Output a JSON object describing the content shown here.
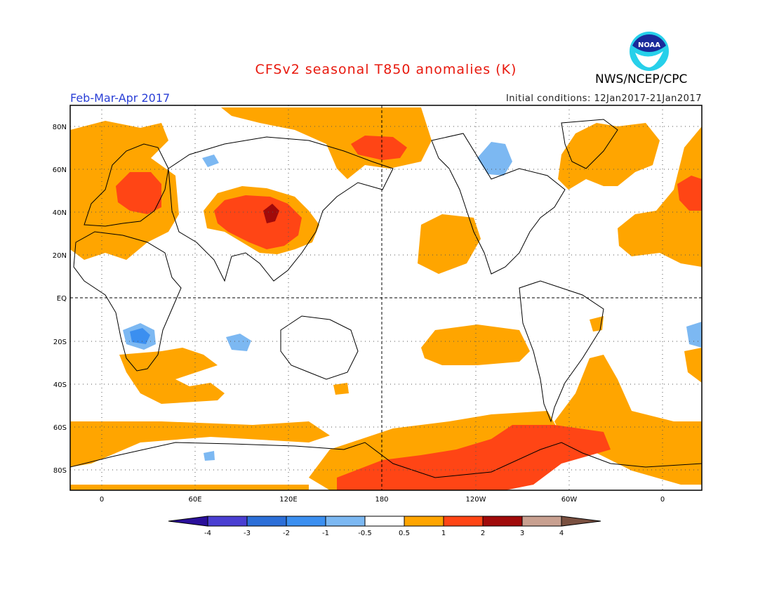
{
  "header": {
    "title": "CFSv2 seasonal T850 anomalies (K)",
    "period": "Feb-Mar-Apr 2017",
    "initial_conditions": "Initial conditions: 12Jan2017-21Jan2017",
    "agency": "NWS/NCEP/CPC",
    "logo_text": "NOAA"
  },
  "map": {
    "lat_labels": [
      "80N",
      "60N",
      "40N",
      "20N",
      "EQ",
      "20S",
      "40S",
      "60S",
      "80S"
    ],
    "lon_labels": [
      "0",
      "60E",
      "120E",
      "180",
      "120W",
      "60W",
      "0"
    ]
  },
  "colorbar": {
    "tick_labels": [
      "-4",
      "-3",
      "-2",
      "-1",
      "-0.5",
      "0.5",
      "1",
      "2",
      "3",
      "4"
    ],
    "colors": [
      "#2a0f9a",
      "#4a3fd2",
      "#2c6fd8",
      "#3b8ff0",
      "#7cb8f2",
      "#ffffff",
      "#ffa500",
      "#ff4515",
      "#a00a0a",
      "#c8a090",
      "#7a5040"
    ]
  },
  "colors": {
    "anomaly_0_5_1": "#ffa500",
    "anomaly_1_2": "#ff4515",
    "anomaly_2_3": "#a00a0a",
    "anomaly_neg_0_5_1": "#7cb8f2",
    "anomaly_neg_1_2": "#3b8ff0"
  }
}
